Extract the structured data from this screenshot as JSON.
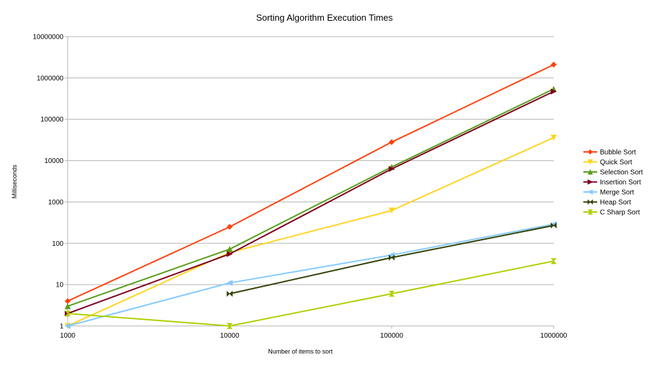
{
  "chart_data": {
    "type": "line",
    "title": "Sorting Algorithm Execution Times",
    "xlabel": "Number of items to sort",
    "ylabel": "Milliseconds",
    "x_scale": "log",
    "y_scale": "log",
    "xlim": [
      1000,
      1000000
    ],
    "ylim": [
      1,
      10000000
    ],
    "grid": "horizontal major",
    "legend_position": "right",
    "x_ticks": [
      "1000",
      "10000",
      "100000",
      "1000000"
    ],
    "y_ticks": [
      "1",
      "10",
      "100",
      "1000",
      "10000",
      "100000",
      "1000000",
      "10000000"
    ],
    "series": [
      {
        "name": "Bubble Sort",
        "color": "#ff420e",
        "marker": "diamond",
        "points": [
          [
            1000,
            4
          ],
          [
            10000,
            250
          ],
          [
            100000,
            28000
          ],
          [
            1000000,
            2100000
          ]
        ]
      },
      {
        "name": "Quick Sort",
        "color": "#ffd320",
        "marker": "triangle-down",
        "points": [
          [
            1000,
            1
          ],
          [
            10000,
            60
          ],
          [
            100000,
            620
          ],
          [
            1000000,
            36000
          ]
        ]
      },
      {
        "name": "Selection Sort",
        "color": "#579d1c",
        "marker": "triangle-up",
        "points": [
          [
            1000,
            3
          ],
          [
            10000,
            72
          ],
          [
            100000,
            7000
          ],
          [
            1000000,
            540000
          ]
        ]
      },
      {
        "name": "Insertion Sort",
        "color": "#7e0021",
        "marker": "triangle-right",
        "points": [
          [
            1000,
            2
          ],
          [
            10000,
            55
          ],
          [
            100000,
            6300
          ],
          [
            1000000,
            470000
          ]
        ]
      },
      {
        "name": "Merge Sort",
        "color": "#83caff",
        "marker": "triangle-left",
        "points": [
          [
            1000,
            1
          ],
          [
            10000,
            11
          ],
          [
            100000,
            52
          ],
          [
            1000000,
            290
          ]
        ]
      },
      {
        "name": "Heap Sort",
        "color": "#314004",
        "marker": "bowtie",
        "points": [
          [
            10000,
            6
          ],
          [
            100000,
            45
          ],
          [
            1000000,
            270
          ]
        ]
      },
      {
        "name": "C Sharp Sort",
        "color": "#aecf00",
        "marker": "hourglass",
        "points": [
          [
            1000,
            2
          ],
          [
            10000,
            1
          ],
          [
            100000,
            6
          ],
          [
            1000000,
            37
          ]
        ]
      }
    ]
  }
}
